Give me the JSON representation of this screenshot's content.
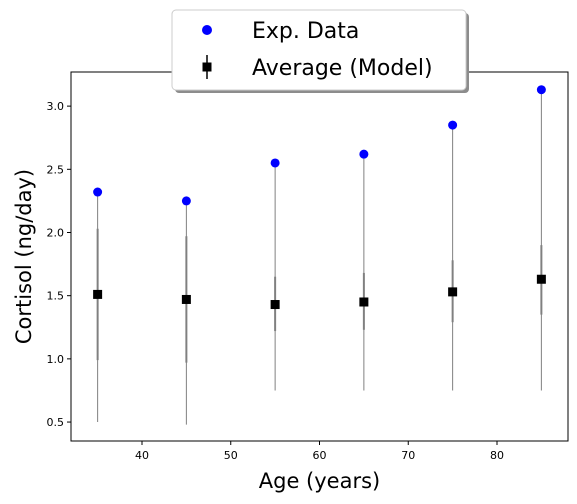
{
  "chart_data": {
    "type": "scatter",
    "xlabel": "Age (years)",
    "ylabel": "Cortisol (ng/day)",
    "xlim": [
      32,
      88
    ],
    "ylim": [
      0.35,
      3.27
    ],
    "xticks": [
      40,
      50,
      60,
      70,
      80
    ],
    "yticks": [
      0.5,
      1.0,
      1.5,
      2.0,
      2.5,
      3.0
    ],
    "xtick_labels": [
      "40",
      "50",
      "60",
      "70",
      "80"
    ],
    "ytick_labels": [
      "0.5",
      "1.0",
      "1.5",
      "2.0",
      "2.5",
      "3.0"
    ],
    "grid": false,
    "legend_position": "top-center, outside",
    "x": [
      35,
      45,
      55,
      65,
      75,
      85
    ],
    "series": [
      {
        "name": "Exp. Data",
        "marker": "circle",
        "color": "#0000ff",
        "values": [
          2.32,
          2.25,
          2.55,
          2.62,
          2.85,
          3.13
        ]
      },
      {
        "name": "Average (Model)",
        "marker": "square",
        "color": "#000000",
        "errorbar_color": "#808080",
        "values": [
          1.51,
          1.47,
          1.43,
          1.45,
          1.53,
          1.63
        ],
        "inner_range_low": [
          0.99,
          0.97,
          1.22,
          1.23,
          1.29,
          1.35
        ],
        "inner_range_high": [
          2.03,
          1.97,
          1.65,
          1.68,
          1.78,
          1.9
        ],
        "outer_range_low": [
          0.5,
          0.48,
          0.75,
          0.75,
          0.75,
          0.75
        ],
        "outer_range_high": [
          2.32,
          2.25,
          2.55,
          2.62,
          2.85,
          3.13
        ]
      }
    ]
  }
}
